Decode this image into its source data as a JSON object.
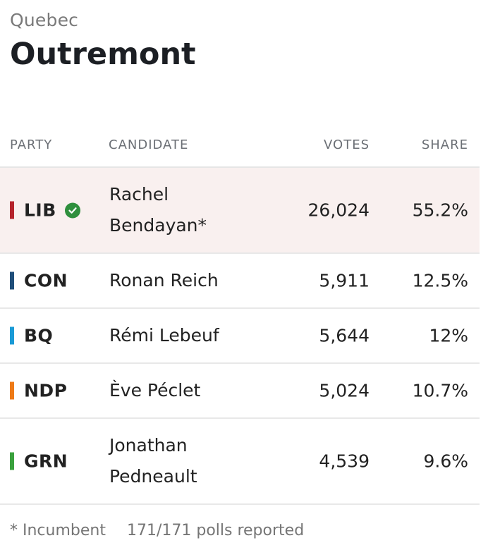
{
  "header": {
    "province": "Quebec",
    "riding": "Outremont"
  },
  "table": {
    "columns": {
      "party": "PARTY",
      "candidate": "CANDIDATE",
      "votes": "VOTES",
      "share": "SHARE"
    },
    "rows": [
      {
        "party": "LIB",
        "candidate": "Rachel Bendayan*",
        "votes": "26,024",
        "share": "55.2%",
        "color": "#b5232b",
        "winner": true
      },
      {
        "party": "CON",
        "candidate": "Ronan Reich",
        "votes": "5,911",
        "share": "12.5%",
        "color": "#1f4e7a",
        "winner": false
      },
      {
        "party": "BQ",
        "candidate": "Rémi Lebeuf",
        "votes": "5,644",
        "share": "12%",
        "color": "#1a9ad6",
        "winner": false
      },
      {
        "party": "NDP",
        "candidate": "Ève Péclet",
        "votes": "5,024",
        "share": "10.7%",
        "color": "#ee7a17",
        "winner": false
      },
      {
        "party": "GRN",
        "candidate": "Jonathan Pedneault",
        "votes": "4,539",
        "share": "9.6%",
        "color": "#3aa13d",
        "winner": false
      }
    ],
    "winner_icon": "check-circle-icon"
  },
  "footer": {
    "note": "* Incumbent",
    "polls": "171/171 polls reported"
  }
}
